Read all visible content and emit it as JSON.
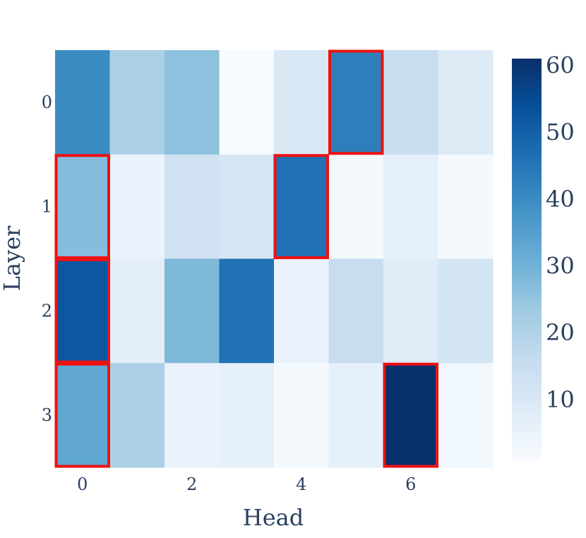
{
  "chart_data": {
    "type": "heatmap",
    "xlabel": "Head",
    "ylabel": "Layer",
    "x_ticks": [
      "0",
      "2",
      "4",
      "6"
    ],
    "y_ticks": [
      "0",
      "1",
      "2",
      "3"
    ],
    "x_categories": [
      0,
      1,
      2,
      3,
      4,
      5,
      6,
      7
    ],
    "y_categories": [
      0,
      1,
      2,
      3
    ],
    "values": [
      [
        40,
        21,
        26,
        1,
        10,
        43,
        15,
        9
      ],
      [
        27,
        5,
        13,
        11,
        46,
        2,
        6,
        2
      ],
      [
        52,
        7,
        28,
        46,
        5,
        15,
        8,
        12
      ],
      [
        33,
        21,
        5,
        6,
        2,
        6,
        61,
        3
      ]
    ],
    "highlighted_cells": [
      {
        "layer": 0,
        "head": 5
      },
      {
        "layer": 1,
        "head": 0
      },
      {
        "layer": 1,
        "head": 4
      },
      {
        "layer": 2,
        "head": 0
      },
      {
        "layer": 3,
        "head": 0
      },
      {
        "layer": 3,
        "head": 6
      }
    ],
    "highlight_color": "#ee1111",
    "colorscale": "Blues",
    "zmin": 1,
    "zmax": 61,
    "colorbar_ticks": [
      "10",
      "20",
      "30",
      "40",
      "50",
      "60"
    ]
  }
}
